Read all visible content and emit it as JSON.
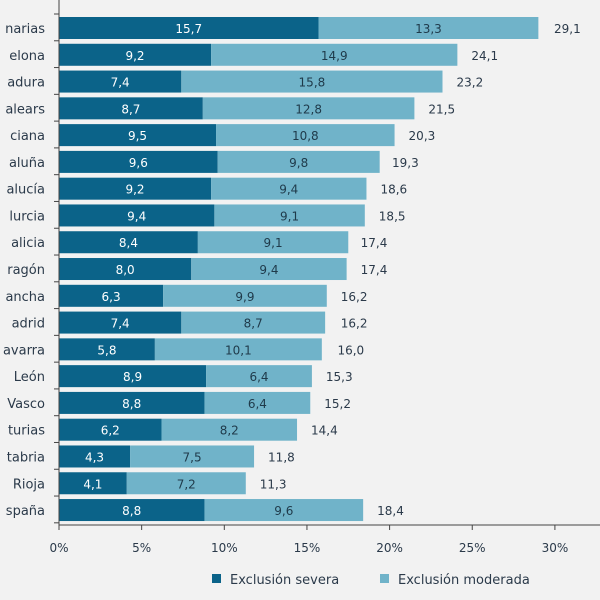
{
  "chart_data": {
    "type": "bar",
    "orientation": "horizontal",
    "stacked": true,
    "categories": [
      "narias",
      "elona",
      "adura",
      "alears",
      "ciana",
      "aluña",
      "alucía",
      "lurcia",
      "alicia",
      "ragón",
      "ancha",
      "adrid",
      "avarra",
      "León",
      "Vasco",
      "turias",
      "tabria",
      "Rioja",
      "spaña"
    ],
    "series": [
      {
        "name": "Exclusión severa",
        "color": "#0b6389",
        "values": [
          15.7,
          9.2,
          7.4,
          8.7,
          9.5,
          9.6,
          9.2,
          9.4,
          8.4,
          8.0,
          6.3,
          7.4,
          5.8,
          8.9,
          8.8,
          6.2,
          4.3,
          4.1,
          8.8
        ],
        "labels": [
          "15,7",
          "9,2",
          "7,4",
          "8,7",
          "9,5",
          "9,6",
          "9,2",
          "9,4",
          "8,4",
          "8,0",
          "6,3",
          "7,4",
          "5,8",
          "8,9",
          "8,8",
          "6,2",
          "4,3",
          "4,1",
          "8,8"
        ]
      },
      {
        "name": "Exclusión moderada",
        "color": "#70b3c9",
        "values": [
          13.3,
          14.9,
          15.8,
          12.8,
          10.8,
          9.8,
          9.4,
          9.1,
          9.1,
          9.4,
          9.9,
          8.7,
          10.1,
          6.4,
          6.4,
          8.2,
          7.5,
          7.2,
          9.6
        ],
        "labels": [
          "13,3",
          "14,9",
          "15,8",
          "12,8",
          "10,8",
          "9,8",
          "9,4",
          "9,1",
          "9,1",
          "9,4",
          "9,9",
          "8,7",
          "10,1",
          "6,4",
          "6,4",
          "8,2",
          "7,5",
          "7,2",
          "9,6"
        ]
      }
    ],
    "totals": [
      "29,1",
      "24,1",
      "23,2",
      "21,5",
      "20,3",
      "19,3",
      "18,6",
      "18,5",
      "17,4",
      "17,4",
      "16,2",
      "16,2",
      "16,0",
      "15,3",
      "15,2",
      "14,4",
      "11,8",
      "11,3",
      "18,4"
    ],
    "total_values": [
      29.1,
      24.1,
      23.2,
      21.5,
      20.3,
      19.3,
      18.6,
      18.5,
      17.4,
      17.4,
      16.2,
      16.2,
      16.0,
      15.3,
      15.2,
      14.4,
      11.8,
      11.3,
      18.4
    ],
    "xlim": [
      0,
      30
    ],
    "xticks": [
      "0%",
      "5%",
      "10%",
      "15%",
      "20%",
      "25%",
      "30%"
    ],
    "grid": false,
    "legend_position": "bottom"
  }
}
